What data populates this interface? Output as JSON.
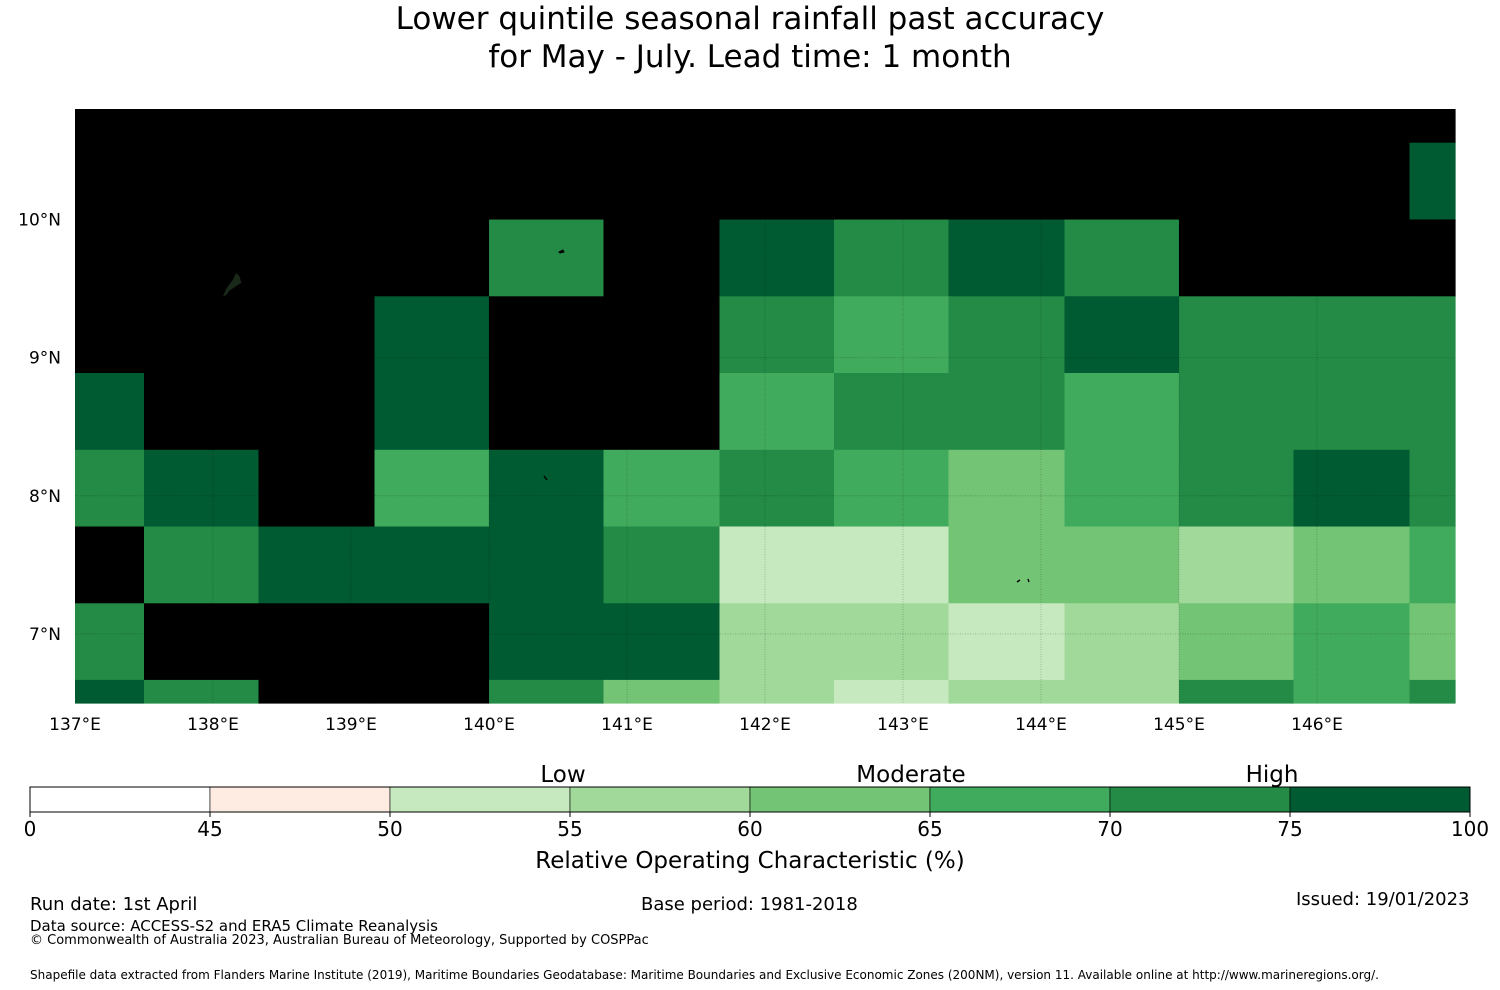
{
  "title": {
    "line1": "Lower quintile seasonal rainfall past accuracy",
    "line2": "for May - July. Lead time: 1 month"
  },
  "map": {
    "lon_ticks": [
      "137°E",
      "138°E",
      "139°E",
      "140°E",
      "141°E",
      "142°E",
      "143°E",
      "144°E",
      "145°E",
      "146°E"
    ],
    "lat_ticks": [
      "10°N",
      "9°N",
      "8°N",
      "7°N"
    ],
    "extent": {
      "lon": [
        137.0,
        147.0
      ],
      "lat": [
        6.5,
        10.8
      ]
    },
    "grid": {
      "lon_edges": [
        137.0,
        137.5,
        138.33,
        139.17,
        140.0,
        140.83,
        141.67,
        142.5,
        143.33,
        144.17,
        145.0,
        145.83,
        146.67,
        147.0
      ],
      "lat_edges": [
        6.5,
        6.667,
        7.222,
        7.778,
        8.333,
        8.889,
        9.444,
        10.0,
        10.556,
        10.8
      ],
      "rows_top_to_bottom": [
        [
          8,
          8,
          8,
          8,
          8,
          8,
          8,
          8,
          8,
          8,
          8,
          8,
          8
        ],
        [
          8,
          8,
          8,
          8,
          8,
          8,
          8,
          8,
          8,
          8,
          8,
          8,
          7
        ],
        [
          8,
          8,
          8,
          8,
          6,
          8,
          7,
          6,
          7,
          6,
          8,
          8,
          8
        ],
        [
          8,
          8,
          8,
          7,
          8,
          8,
          6,
          5,
          6,
          7,
          6,
          6,
          6
        ],
        [
          7,
          8,
          8,
          7,
          8,
          8,
          5,
          6,
          6,
          5,
          6,
          6,
          6
        ],
        [
          6,
          7,
          8,
          5,
          7,
          5,
          6,
          5,
          4,
          5,
          6,
          7,
          6
        ],
        [
          8,
          6,
          7,
          7,
          7,
          6,
          2,
          2,
          4,
          4,
          3,
          4,
          5
        ],
        [
          6,
          8,
          8,
          8,
          7,
          7,
          3,
          3,
          2,
          3,
          4,
          5,
          4
        ],
        [
          7,
          6,
          8,
          8,
          6,
          4,
          3,
          2,
          3,
          3,
          6,
          5,
          6
        ]
      ]
    }
  },
  "colorbar": {
    "boundaries": [
      "0",
      "45",
      "50",
      "55",
      "60",
      "65",
      "70",
      "75",
      "100"
    ],
    "colors": [
      "#ffffff",
      "#feebe2",
      "#c7e9c0",
      "#a1d99b",
      "#74c476",
      "#41ab5d",
      "#238b45",
      "#005a32"
    ],
    "categories": [
      "Low",
      "Moderate",
      "High"
    ],
    "title": "Relative Operating Characteristic (%)"
  },
  "footer": {
    "run_date": "Run date: 1st April",
    "base_period": "Base period: 1981-2018",
    "issued": "Issued: 19/01/2023",
    "data_source": "Data source: ACCESS-S2 and ERA5 Climate Reanalysis",
    "copyright": "© Commonwealth of Australia 2023, Australian Bureau of Meteorology, Supported by COSPPac",
    "shapefile": "Shapefile data extracted from Flanders Marine Institute (2019), Maritime Boundaries Geodatabase: Maritime Boundaries and Exclusive Economic Zones (200NM), version 11. Available online at http://www.marineregions.org/."
  }
}
